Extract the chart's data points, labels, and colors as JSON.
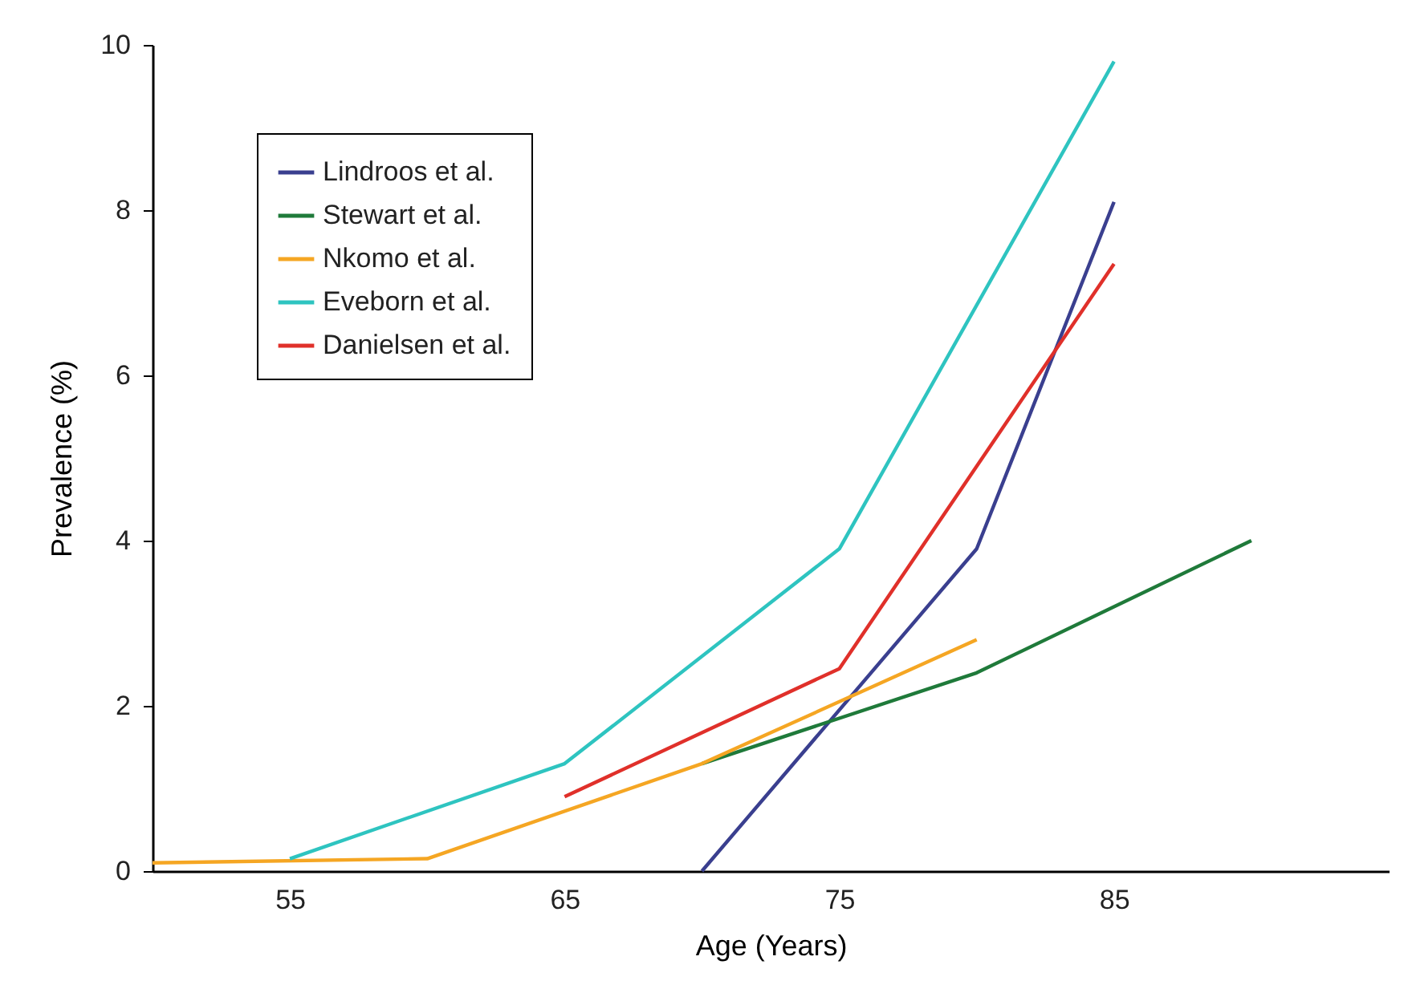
{
  "chart_data": {
    "type": "line",
    "xlabel": "Age (Years)",
    "ylabel": "Prevalence (%)",
    "xlim": [
      50,
      95
    ],
    "ylim": [
      0,
      10
    ],
    "xticks": [
      55,
      65,
      75,
      85
    ],
    "yticks": [
      0,
      2,
      4,
      6,
      8,
      10
    ],
    "grid": false,
    "legend": "top left",
    "line_style": "solid",
    "marker": "none",
    "series": [
      {
        "name": "Lindroos et al.",
        "color": "#3a3f8f",
        "x": [
          70,
          80,
          85
        ],
        "values": [
          0,
          3.9,
          8.1
        ]
      },
      {
        "name": "Stewart et al.",
        "color": "#1f7a3a",
        "x": [
          70,
          80,
          90
        ],
        "values": [
          1.3,
          2.4,
          4.0
        ]
      },
      {
        "name": "Nkomo et al.",
        "color": "#f5a623",
        "x": [
          50,
          60,
          70,
          80
        ],
        "values": [
          0.1,
          0.15,
          1.3,
          2.8
        ]
      },
      {
        "name": "Eveborn et al.",
        "color": "#2ec4c0",
        "x": [
          55,
          65,
          75,
          85
        ],
        "values": [
          0.15,
          1.3,
          3.9,
          9.8
        ]
      },
      {
        "name": "Danielsen et al.",
        "color": "#e0302a",
        "x": [
          65,
          75,
          85
        ],
        "values": [
          0.9,
          2.45,
          7.35
        ]
      }
    ]
  }
}
